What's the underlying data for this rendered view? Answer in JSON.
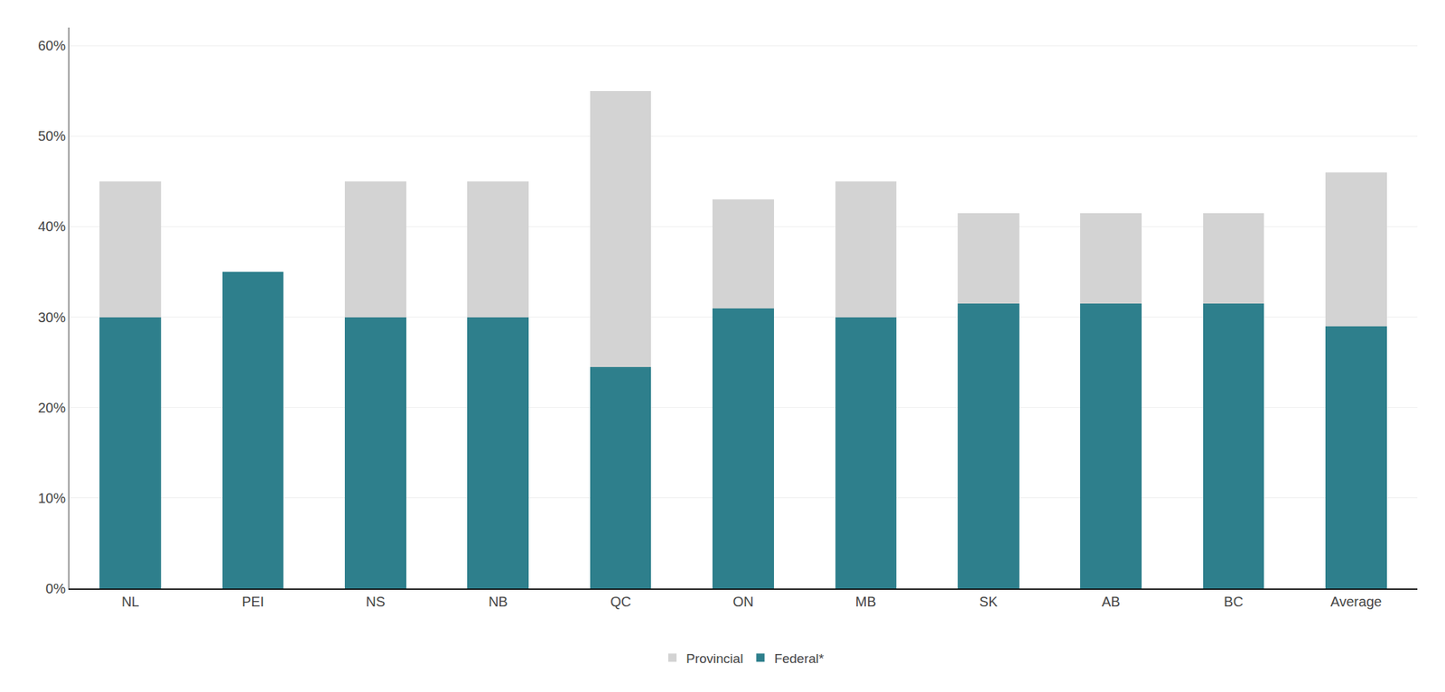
{
  "chart_data": {
    "type": "bar",
    "categories": [
      "NL",
      "PEI",
      "NS",
      "NB",
      "QC",
      "ON",
      "MB",
      "SK",
      "AB",
      "BC",
      "Average"
    ],
    "series": [
      {
        "name": "Federal*",
        "color": "#2E7F8C",
        "values": [
          30.0,
          35.0,
          30.0,
          30.0,
          24.5,
          31.0,
          30.0,
          31.5,
          31.5,
          31.5,
          29.0
        ]
      },
      {
        "name": "Provincial",
        "color": "#D3D3D3",
        "values": [
          15.0,
          0.0,
          15.0,
          15.0,
          30.5,
          12.0,
          15.0,
          10.0,
          10.0,
          10.0,
          17.0
        ]
      }
    ],
    "stacked": true,
    "ylim": [
      0,
      62
    ],
    "yticks": [
      {
        "value": 0,
        "label": "0%"
      },
      {
        "value": 10,
        "label": "10%"
      },
      {
        "value": 20,
        "label": "20%"
      },
      {
        "value": 30,
        "label": "30%"
      },
      {
        "value": 40,
        "label": "40%"
      },
      {
        "value": 50,
        "label": "50%"
      },
      {
        "value": 60,
        "label": "60%"
      }
    ],
    "grid": true,
    "legend": "bottom"
  }
}
